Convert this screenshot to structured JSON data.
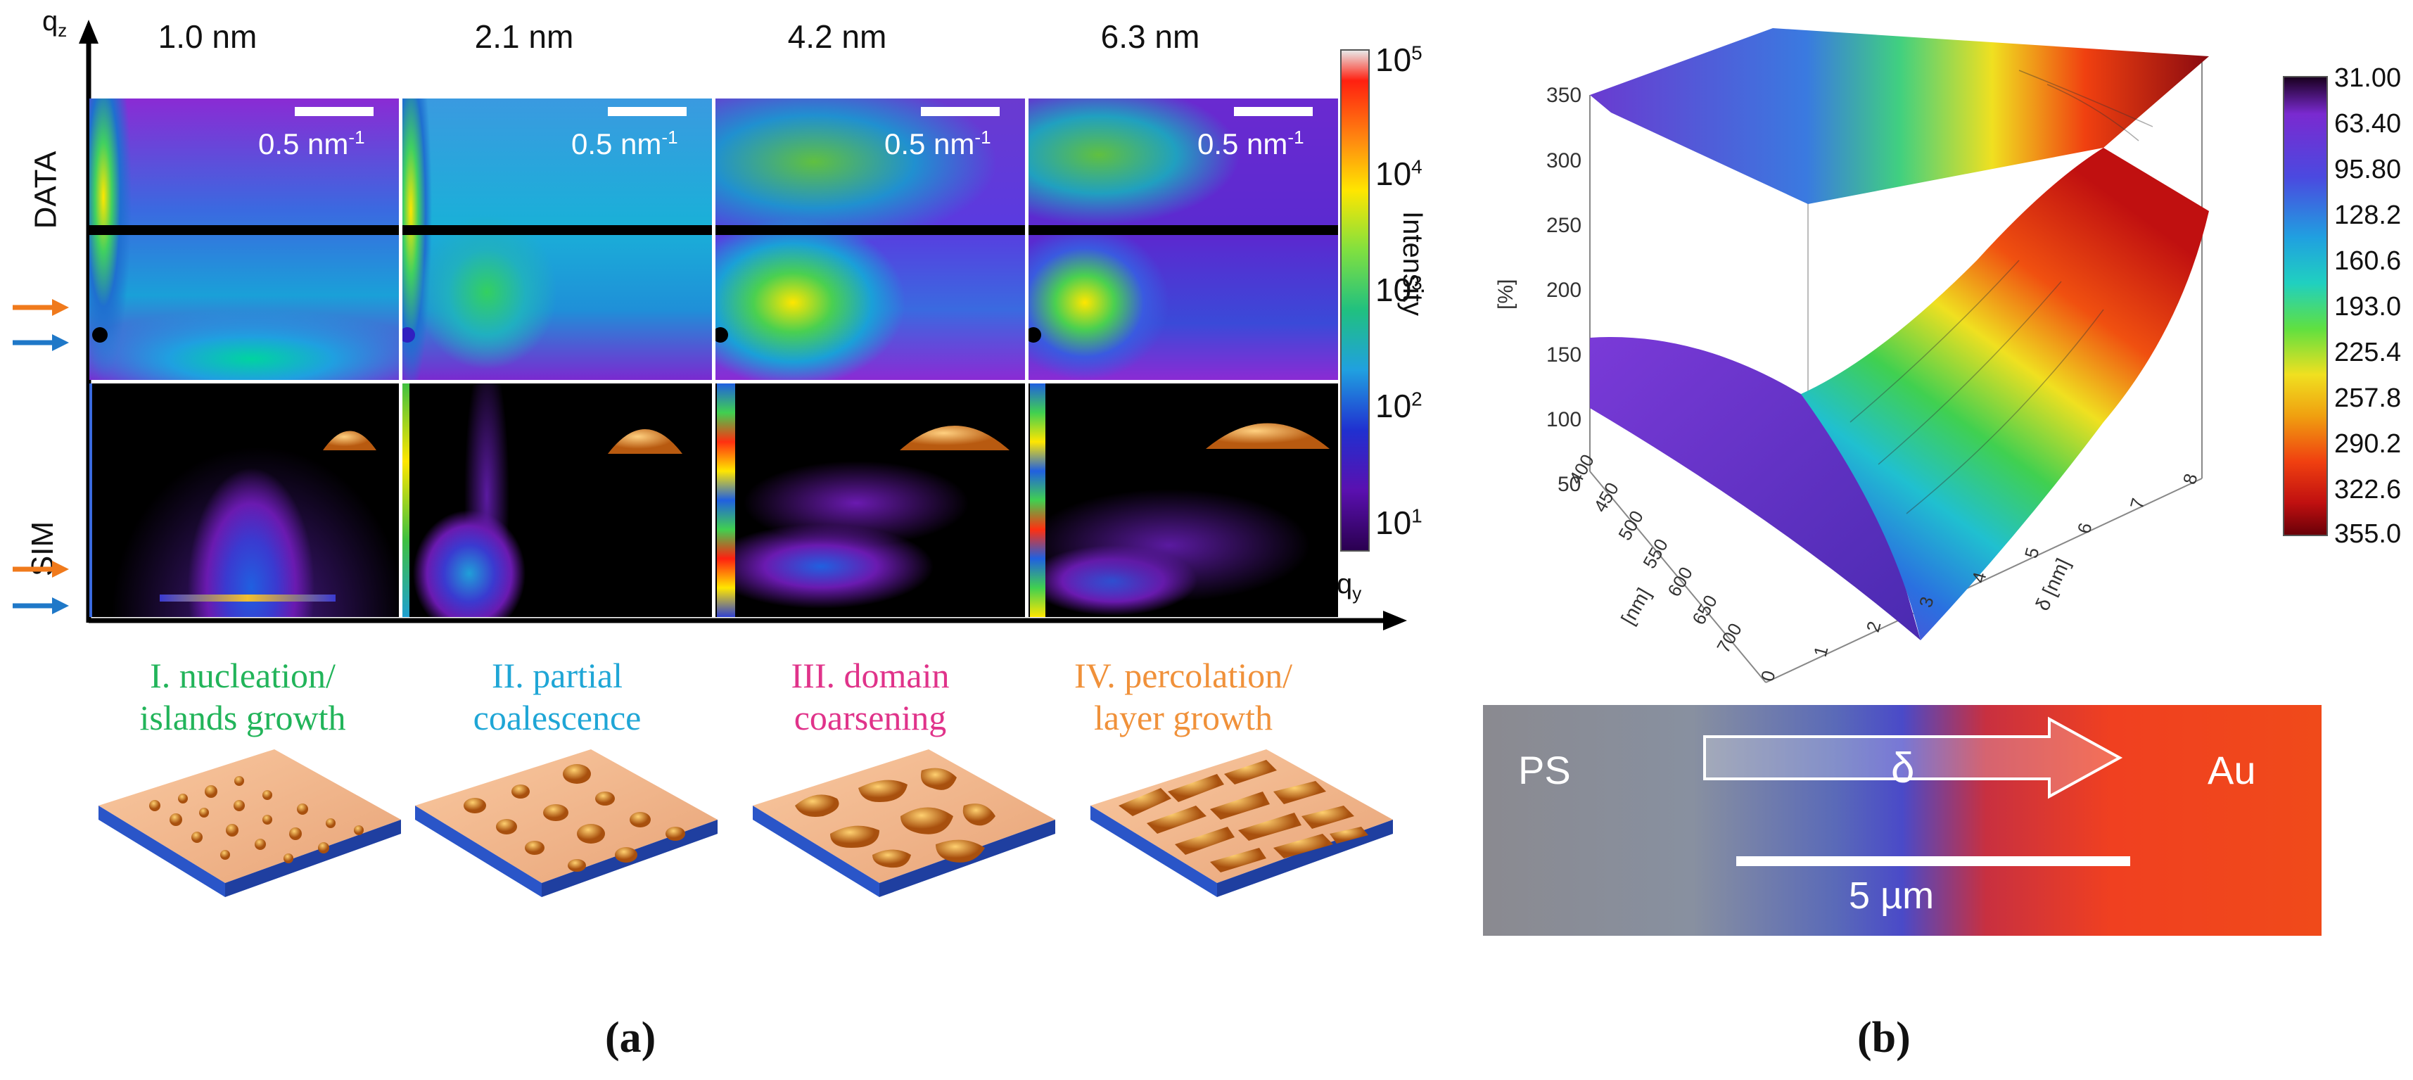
{
  "panel_a": {
    "thickness_labels": [
      "1.0 nm",
      "2.1 nm",
      "4.2 nm",
      "6.3 nm"
    ],
    "row_labels": [
      "DATA",
      "SIM"
    ],
    "scale_bar_label": "0.5 nm",
    "scale_bar_exponent": "-1",
    "axis_qz": "q",
    "axis_qz_sub": "z",
    "axis_qy": "q",
    "axis_qy_sub": "y",
    "colorbar_title": "Intensity",
    "colorbar_ticks": [
      {
        "base": "10",
        "exp": "5"
      },
      {
        "base": "10",
        "exp": "4"
      },
      {
        "base": "10",
        "exp": "3"
      },
      {
        "base": "10",
        "exp": "2"
      },
      {
        "base": "10",
        "exp": "1"
      }
    ],
    "stages": [
      {
        "line1": "I. nucleation/",
        "line2": "islands growth",
        "color": "#22b45a"
      },
      {
        "line1": "II. partial",
        "line2": "coalescence",
        "color": "#1fa6d6"
      },
      {
        "line1": "III. domain",
        "line2": "coarsening",
        "color": "#e0338a"
      },
      {
        "line1": "IV. percolation/",
        "line2": "layer growth",
        "color": "#f0913a"
      }
    ],
    "arrow_colors": [
      "#f07a1c",
      "#1f78c8"
    ],
    "label": "(a)"
  },
  "panel_b": {
    "colorbar_ticks": [
      "31.00",
      "63.40",
      "95.80",
      "128.2",
      "160.6",
      "193.0",
      "225.4",
      "257.8",
      "290.2",
      "322.6",
      "355.0"
    ],
    "z_axis_label": "[%]",
    "z_ticks": [
      "350",
      "300",
      "250",
      "200",
      "150",
      "100",
      "50"
    ],
    "lambda_axis_label": "[nm]",
    "lambda_ticks": [
      "400",
      "450",
      "500",
      "550",
      "600",
      "650",
      "700"
    ],
    "delta_axis_label": "δ [nm]",
    "delta_ticks": [
      "0",
      "1",
      "2",
      "3",
      "4",
      "5",
      "6",
      "7",
      "8"
    ],
    "micrograph": {
      "left_label": "PS",
      "center_label": "δ",
      "right_label": "Au",
      "scale_label": "5 µm"
    },
    "label": "(b)"
  }
}
